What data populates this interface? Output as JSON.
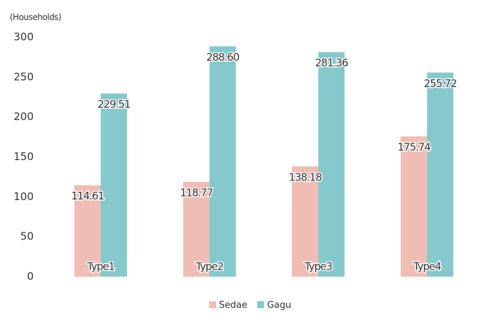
{
  "chart_data": {
    "type": "bar",
    "y_axis_label": "(Households)",
    "categories": [
      "Type1",
      "Type2",
      "Type3",
      "Type4"
    ],
    "series": [
      {
        "name": "Sedae",
        "color": "#f0bdb5",
        "values": [
          114.61,
          118.77,
          138.18,
          175.74
        ],
        "value_labels": [
          "114.61",
          "118.77",
          "138.18",
          "175.74"
        ]
      },
      {
        "name": "Gagu",
        "color": "#86c9cc",
        "values": [
          229.51,
          288.6,
          281.36,
          255.72
        ],
        "value_labels": [
          "229.51",
          "288.60",
          "281.36",
          "255.72"
        ]
      }
    ],
    "ylim": [
      0,
      300
    ],
    "yticks": [
      0,
      50,
      100,
      150,
      200,
      250,
      300
    ],
    "grid": false,
    "legend": "bottom"
  }
}
